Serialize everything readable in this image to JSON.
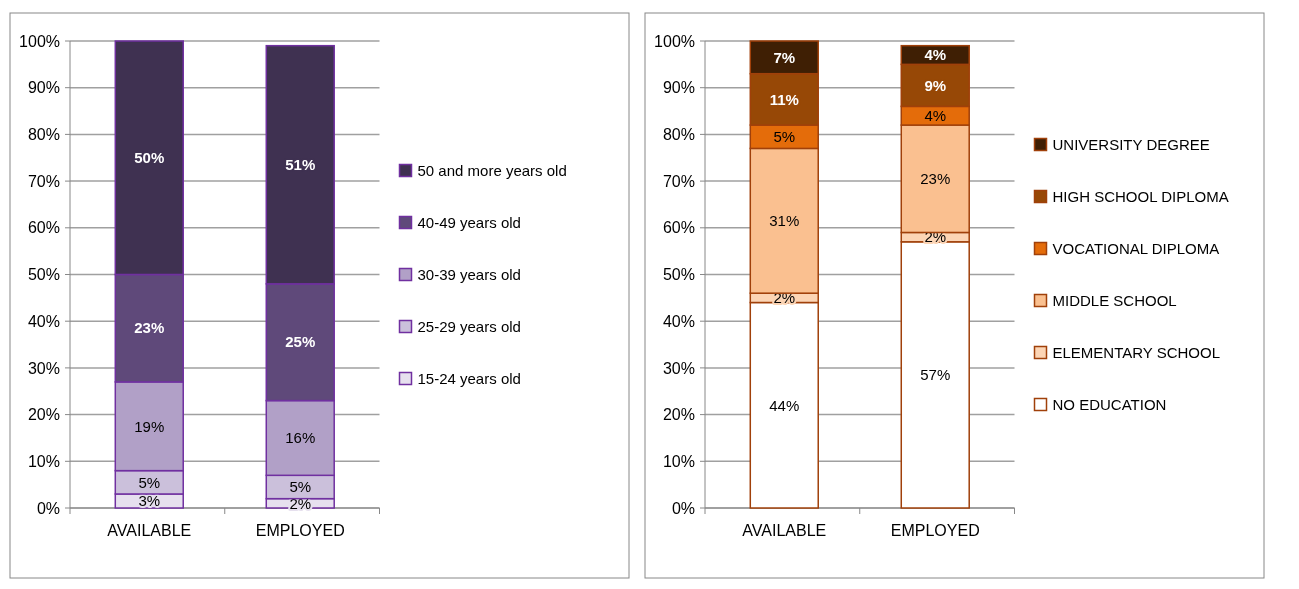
{
  "chart_data": [
    {
      "type": "bar",
      "stacked": true,
      "categories": [
        "AVAILABLE",
        "EMPLOYED"
      ],
      "ylim": [
        0,
        100
      ],
      "yticks": [
        {
          "value": 0,
          "label": "0%"
        },
        {
          "value": 10,
          "label": "10%"
        },
        {
          "value": 20,
          "label": "20%"
        },
        {
          "value": 30,
          "label": "30%"
        },
        {
          "value": 40,
          "label": "40%"
        },
        {
          "value": 50,
          "label": "50%"
        },
        {
          "value": 60,
          "label": "60%"
        },
        {
          "value": 70,
          "label": "70%"
        },
        {
          "value": 80,
          "label": "80%"
        },
        {
          "value": 90,
          "label": "90%"
        },
        {
          "value": 100,
          "label": "100%"
        }
      ],
      "grid": "y",
      "legend": "right",
      "series": [
        {
          "name": "15-24 years old",
          "color": "#e6e0ee",
          "values": [
            3,
            2
          ],
          "value_labels": [
            "3%",
            "2%"
          ]
        },
        {
          "name": "25-29 years old",
          "color": "#cbc0db",
          "values": [
            5,
            5
          ],
          "value_labels": [
            "5%",
            "5%"
          ]
        },
        {
          "name": "30-39 years old",
          "color": "#b1a0c7",
          "values": [
            19,
            16
          ],
          "value_labels": [
            "19%",
            "16%"
          ]
        },
        {
          "name": "40-49 years old",
          "color": "#5f497a",
          "values": [
            23,
            25
          ],
          "value_labels": [
            "23%",
            "25%"
          ]
        },
        {
          "name": "50 and more years old",
          "color": "#3f3151",
          "values": [
            50,
            51
          ],
          "value_labels": [
            "50%",
            "51%"
          ]
        }
      ]
    },
    {
      "type": "bar",
      "stacked": true,
      "categories": [
        "AVAILABLE",
        "EMPLOYED"
      ],
      "ylim": [
        0,
        100
      ],
      "yticks": [
        {
          "value": 0,
          "label": "0%"
        },
        {
          "value": 10,
          "label": "10%"
        },
        {
          "value": 20,
          "label": "20%"
        },
        {
          "value": 30,
          "label": "30%"
        },
        {
          "value": 40,
          "label": "40%"
        },
        {
          "value": 50,
          "label": "50%"
        },
        {
          "value": 60,
          "label": "60%"
        },
        {
          "value": 70,
          "label": "70%"
        },
        {
          "value": 80,
          "label": "80%"
        },
        {
          "value": 90,
          "label": "90%"
        },
        {
          "value": 100,
          "label": "100%"
        }
      ],
      "grid": "y",
      "legend": "right",
      "series": [
        {
          "name": "NO EDUCATION",
          "color": "#ffffff",
          "values": [
            44,
            57
          ],
          "value_labels": [
            "44%",
            "57%"
          ]
        },
        {
          "name": "ELEMENTARY SCHOOL",
          "color": "#fcd5b5",
          "values": [
            2,
            2
          ],
          "value_labels": [
            "2%",
            "2%"
          ]
        },
        {
          "name": "MIDDLE SCHOOL",
          "color": "#fac090",
          "values": [
            31,
            23
          ],
          "value_labels": [
            "31%",
            "23%"
          ]
        },
        {
          "name": "VOCATIONAL DIPLOMA",
          "color": "#e46c0a",
          "values": [
            5,
            4
          ],
          "value_labels": [
            "5%",
            "4%"
          ]
        },
        {
          "name": "HIGH SCHOOL DIPLOMA",
          "color": "#974806",
          "values": [
            11,
            9
          ],
          "value_labels": [
            "11%",
            "9%"
          ]
        },
        {
          "name": "UNIVERSITY DEGREE",
          "color": "#3f1f04",
          "values": [
            7,
            4
          ],
          "value_labels": [
            "7%",
            "4%"
          ]
        }
      ]
    }
  ]
}
